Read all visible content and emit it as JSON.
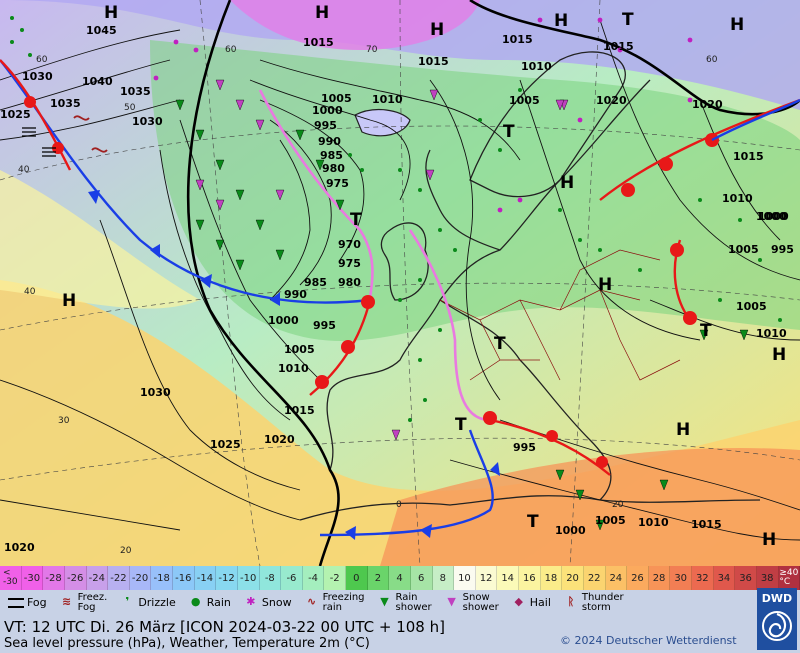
{
  "scale": {
    "low_label": "<\n-30",
    "high_label": "≥40\n°C",
    "values": [
      "-30",
      "-28",
      "-26",
      "-24",
      "-22",
      "-20",
      "-18",
      "-16",
      "-14",
      "-12",
      "-10",
      "-8",
      "-6",
      "-4",
      "-2",
      "0",
      "2",
      "4",
      "6",
      "8",
      "10",
      "12",
      "14",
      "16",
      "18",
      "20",
      "22",
      "24",
      "26",
      "28",
      "30",
      "32",
      "34",
      "36",
      "38"
    ],
    "colors": [
      "#f060e8",
      "#e278e8",
      "#d48ee6",
      "#c8a0ea",
      "#b8b0f0",
      "#a8b8f8",
      "#98c0fa",
      "#8cc8f8",
      "#88d0f4",
      "#88d8f0",
      "#8ce0e8",
      "#90e6dc",
      "#98eace",
      "#a4eebe",
      "#b4f2b0",
      "#4ec84e",
      "#6ad46a",
      "#88dc88",
      "#a6e4a6",
      "#c6eec6",
      "#fbfbf0",
      "#fbfbd2",
      "#fbfab8",
      "#fbf4a0",
      "#fbec8a",
      "#fbe27a",
      "#fbd470",
      "#fbc066",
      "#fbaa5e",
      "#f79458",
      "#f27e54",
      "#ec6a50",
      "#e0584c",
      "#d04a48",
      "#c03e44"
    ]
  },
  "legend": {
    "fog": "Fog",
    "freezing_fog": "Freez.\nFog",
    "drizzle": "Drizzle",
    "rain": "Rain",
    "snow": "Snow",
    "freezing_rain": "Freezing\nrain",
    "rain_shower": "Rain\nshower",
    "snow_shower": "Snow\nshower",
    "hail": "Hail",
    "thunderstorm": "Thunder\nstorm"
  },
  "info": {
    "valid_time": "VT: 12 UTC Di.  26 März [ICON 2024-03-22  00 UTC + 108 h]",
    "description": "Sea level pressure (hPa), Weather, Temperature 2m (°C)",
    "copyright": "© 2024 Deutscher Wetterdienst",
    "logo": "DWD"
  },
  "map": {
    "pressure_labels": [
      "1045",
      "1040",
      "1035",
      "1030",
      "1035",
      "1030",
      "1025",
      "1015",
      "1015",
      "1010",
      "1015",
      "1005",
      "1000",
      "995",
      "990",
      "985",
      "980",
      "975",
      "970",
      "975",
      "980",
      "985",
      "990",
      "995",
      "1000",
      "1005",
      "1010",
      "1015",
      "1020",
      "1025",
      "1030",
      "1020",
      "1005",
      "1010",
      "1015",
      "1005",
      "1000",
      "995",
      "1000",
      "1005",
      "1010",
      "1015",
      "1020",
      "1010",
      "1005",
      "995",
      "1000",
      "1010",
      "1015",
      "1020"
    ],
    "centers": [
      {
        "type": "H",
        "label": "H"
      },
      {
        "type": "H",
        "label": "H"
      },
      {
        "type": "H",
        "label": "H"
      },
      {
        "type": "H",
        "label": "H"
      },
      {
        "type": "H",
        "label": "H"
      },
      {
        "type": "H",
        "label": "H"
      },
      {
        "type": "H",
        "label": "H"
      },
      {
        "type": "H",
        "label": "H"
      },
      {
        "type": "H",
        "label": "H"
      },
      {
        "type": "H",
        "label": "H"
      },
      {
        "type": "H",
        "label": "H"
      },
      {
        "type": "T",
        "label": "T"
      },
      {
        "type": "T",
        "label": "T"
      },
      {
        "type": "T",
        "label": "T"
      },
      {
        "type": "T",
        "label": "T"
      },
      {
        "type": "T",
        "label": "T"
      },
      {
        "type": "T",
        "label": "T"
      },
      {
        "type": "T",
        "label": "T"
      }
    ],
    "temperature_labels": [
      "60",
      "60",
      "70",
      "60",
      "50",
      "40",
      "40",
      "30",
      "20",
      "0",
      "20"
    ]
  }
}
